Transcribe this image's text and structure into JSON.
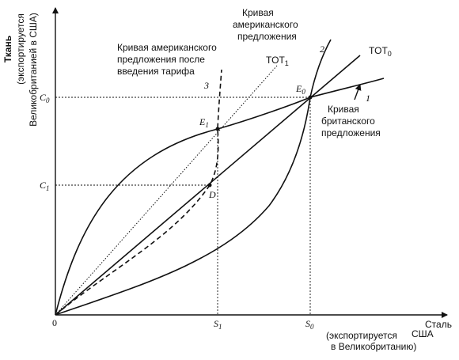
{
  "diagram": {
    "y_axis_title": "Ткань",
    "y_axis_sub1": "(экспортируется",
    "y_axis_sub2": "Великобританией в США)",
    "x_axis_title": "Сталь",
    "x_axis_sub1": "(экспортируется",
    "x_axis_sub1b": "США",
    "x_axis_sub2": "в Великобританию)",
    "origin": "0",
    "c0": "C",
    "c0_sub": "0",
    "c1": "C",
    "c1_sub": "1",
    "s0": "S",
    "s0_sub": "0",
    "s1": "S",
    "s1_sub": "1",
    "e0": "E",
    "e0_sub": "0",
    "e1": "E",
    "e1_sub": "1",
    "d_point": "D",
    "us_curve_line1": "Кривая",
    "us_curve_line2": "американского",
    "us_curve_line3": "предложения",
    "us_curve_num": "2",
    "tariff_curve_line1": "Кривая американского",
    "tariff_curve_line2": "предложения после",
    "tariff_curve_line3": "введения тарифа",
    "tariff_curve_num": "3",
    "uk_curve_line1": "Кривая",
    "uk_curve_line2": "британского",
    "uk_curve_line3": "предложения",
    "uk_curve_num": "1",
    "tot0": "TOT",
    "tot0_sub": "0",
    "tot1": "TOT",
    "tot1_sub": "1"
  }
}
